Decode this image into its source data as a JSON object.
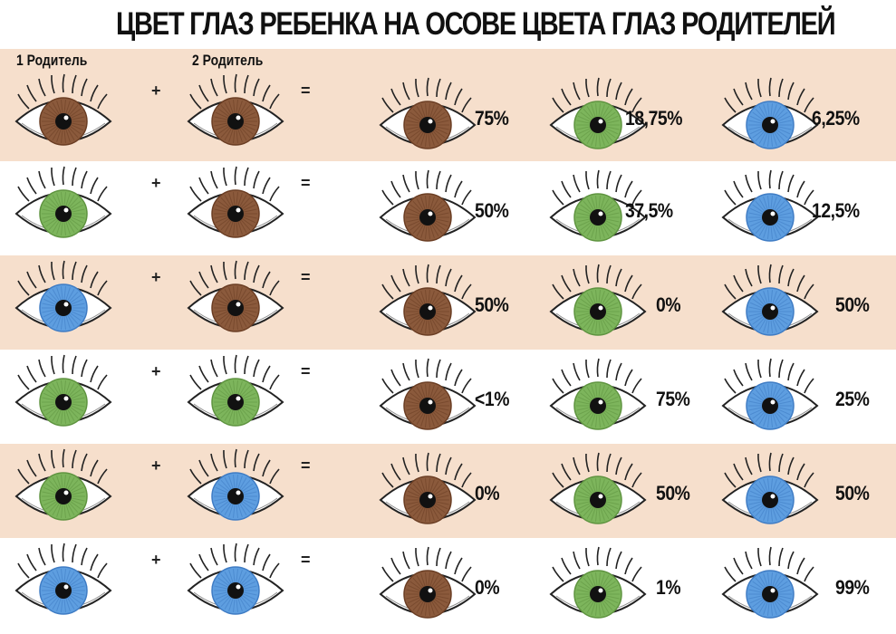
{
  "title": "ЦВЕТ ГЛАЗ РЕБЕНКА НА ОСОВЕ ЦВЕТА ГЛАЗ РОДИТЕЛЕЙ",
  "parent1_label": "1 Родитель",
  "parent2_label": "2 Родитель",
  "plus": "+",
  "equals": "=",
  "colors": {
    "brown": "#8b5a3c",
    "brown_dark": "#6b3e24",
    "green": "#7db55c",
    "green_dark": "#5f9440",
    "blue": "#5e9ee0",
    "blue_dark": "#3f7cc4",
    "band": "#f6dfcc"
  },
  "rows": [
    {
      "p1": "brown",
      "p2": "brown",
      "brown": "75%",
      "green": "18,75%",
      "blue": "6,25%"
    },
    {
      "p1": "green",
      "p2": "brown",
      "brown": "50%",
      "green": "37,5%",
      "blue": "12,5%"
    },
    {
      "p1": "blue",
      "p2": "brown",
      "brown": "50%",
      "green": "0%",
      "blue": "50%"
    },
    {
      "p1": "green",
      "p2": "green",
      "brown": "<1%",
      "green": "75%",
      "blue": "25%"
    },
    {
      "p1": "green",
      "p2": "blue",
      "brown": "0%",
      "green": "50%",
      "blue": "50%"
    },
    {
      "p1": "blue",
      "p2": "blue",
      "brown": "0%",
      "green": "1%",
      "blue": "99%"
    }
  ]
}
